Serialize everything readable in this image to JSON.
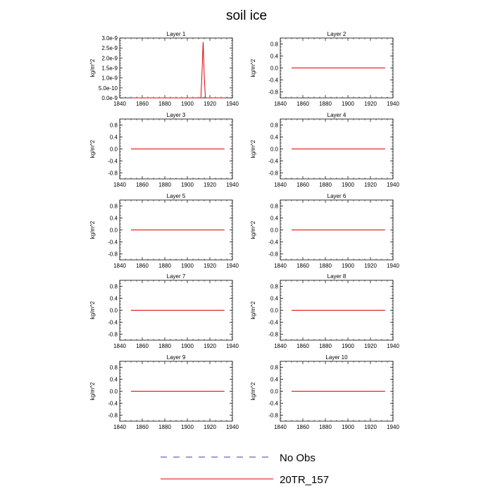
{
  "title": "soil ice",
  "legend": [
    {
      "label": "No Obs",
      "color": "#3b3bb8",
      "style": "dashed"
    },
    {
      "label": "20TR_157",
      "color": "#e00000",
      "style": "solid"
    }
  ],
  "chart_data": [
    {
      "type": "line",
      "title": "Layer 1",
      "ylabel": "kg/m^2",
      "xlim": [
        1840,
        1940
      ],
      "ylim": [
        0,
        3e-09
      ],
      "xticks": [
        1840,
        1860,
        1880,
        1900,
        1920,
        1940
      ],
      "yticks": [
        {
          "value": 0.0,
          "label": "0.0e-9"
        },
        {
          "value": 5e-10,
          "label": "5.0e-10"
        },
        {
          "value": 1e-09,
          "label": "1.0e-9"
        },
        {
          "value": 1.5e-09,
          "label": "1.5e-9"
        },
        {
          "value": 2e-09,
          "label": "2.0e-9"
        },
        {
          "value": 2.5e-09,
          "label": "2.5e-9"
        },
        {
          "value": 3e-09,
          "label": "3.0e-9"
        }
      ],
      "series": [
        {
          "name": "20TR_157",
          "color": "#e00000",
          "x": [
            1850,
            1911,
            1912,
            1913,
            1914,
            1915,
            1916,
            1933
          ],
          "y": [
            0,
            0,
            0,
            1.2e-09,
            2.8e-09,
            1.1e-09,
            0,
            0
          ]
        }
      ]
    },
    {
      "type": "line",
      "title": "Layer 2",
      "ylabel": "kg/m^2",
      "xlim": [
        1840,
        1940
      ],
      "ylim": [
        -1.0,
        1.0
      ],
      "xticks": [
        1840,
        1860,
        1880,
        1900,
        1920,
        1940
      ],
      "yticks": [
        {
          "value": 0.8,
          "label": "0.8"
        },
        {
          "value": 0.4,
          "label": "0.4"
        },
        {
          "value": 0.0,
          "label": "0.0"
        },
        {
          "value": -0.4,
          "label": "-0.4"
        },
        {
          "value": -0.8,
          "label": "-0.8"
        }
      ],
      "series": [
        {
          "name": "20TR_157",
          "color": "#e00000",
          "x": [
            1850,
            1933
          ],
          "y": [
            0,
            0
          ]
        }
      ]
    },
    {
      "type": "line",
      "title": "Layer 3",
      "ylabel": "kg/m^2",
      "xlim": [
        1840,
        1940
      ],
      "ylim": [
        -1.0,
        1.0
      ],
      "xticks": [
        1840,
        1860,
        1880,
        1900,
        1920,
        1940
      ],
      "yticks": [
        {
          "value": 0.8,
          "label": "0.8"
        },
        {
          "value": 0.4,
          "label": "0.4"
        },
        {
          "value": 0.0,
          "label": "0.0"
        },
        {
          "value": -0.4,
          "label": "-0.4"
        },
        {
          "value": -0.8,
          "label": "-0.8"
        }
      ],
      "series": [
        {
          "name": "20TR_157",
          "color": "#e00000",
          "x": [
            1850,
            1933
          ],
          "y": [
            0,
            0
          ]
        }
      ]
    },
    {
      "type": "line",
      "title": "Layer 4",
      "ylabel": "kg/m^2",
      "xlim": [
        1840,
        1940
      ],
      "ylim": [
        -1.0,
        1.0
      ],
      "xticks": [
        1840,
        1860,
        1880,
        1900,
        1920,
        1940
      ],
      "yticks": [
        {
          "value": 0.8,
          "label": "0.8"
        },
        {
          "value": 0.4,
          "label": "0.4"
        },
        {
          "value": 0.0,
          "label": "0.0"
        },
        {
          "value": -0.4,
          "label": "-0.4"
        },
        {
          "value": -0.8,
          "label": "-0.8"
        }
      ],
      "series": [
        {
          "name": "20TR_157",
          "color": "#e00000",
          "x": [
            1850,
            1933
          ],
          "y": [
            0,
            0
          ]
        }
      ]
    },
    {
      "type": "line",
      "title": "Layer 5",
      "ylabel": "kg/m^2",
      "xlim": [
        1840,
        1940
      ],
      "ylim": [
        -1.0,
        1.0
      ],
      "xticks": [
        1840,
        1860,
        1880,
        1900,
        1920,
        1940
      ],
      "yticks": [
        {
          "value": 0.8,
          "label": "0.8"
        },
        {
          "value": 0.4,
          "label": "0.4"
        },
        {
          "value": 0.0,
          "label": "0.0"
        },
        {
          "value": -0.4,
          "label": "-0.4"
        },
        {
          "value": -0.8,
          "label": "-0.8"
        }
      ],
      "series": [
        {
          "name": "20TR_157",
          "color": "#e00000",
          "x": [
            1850,
            1933
          ],
          "y": [
            0,
            0
          ]
        }
      ]
    },
    {
      "type": "line",
      "title": "Layer 6",
      "ylabel": "kg/m^2",
      "xlim": [
        1840,
        1940
      ],
      "ylim": [
        -1.0,
        1.0
      ],
      "xticks": [
        1840,
        1860,
        1880,
        1900,
        1920,
        1940
      ],
      "yticks": [
        {
          "value": 0.8,
          "label": "0.8"
        },
        {
          "value": 0.4,
          "label": "0.4"
        },
        {
          "value": 0.0,
          "label": "0.0"
        },
        {
          "value": -0.4,
          "label": "-0.4"
        },
        {
          "value": -0.8,
          "label": "-0.8"
        }
      ],
      "series": [
        {
          "name": "20TR_157",
          "color": "#e00000",
          "x": [
            1850,
            1933
          ],
          "y": [
            0,
            0
          ]
        }
      ]
    },
    {
      "type": "line",
      "title": "Layer 7",
      "ylabel": "kg/m^2",
      "xlim": [
        1840,
        1940
      ],
      "ylim": [
        -1.0,
        1.0
      ],
      "xticks": [
        1840,
        1860,
        1880,
        1900,
        1920,
        1940
      ],
      "yticks": [
        {
          "value": 0.8,
          "label": "0.8"
        },
        {
          "value": 0.4,
          "label": "0.4"
        },
        {
          "value": 0.0,
          "label": "0.0"
        },
        {
          "value": -0.4,
          "label": "-0.4"
        },
        {
          "value": -0.8,
          "label": "-0.8"
        }
      ],
      "series": [
        {
          "name": "20TR_157",
          "color": "#e00000",
          "x": [
            1850,
            1933
          ],
          "y": [
            0,
            0
          ]
        }
      ]
    },
    {
      "type": "line",
      "title": "Layer 8",
      "ylabel": "kg/m^2",
      "xlim": [
        1840,
        1940
      ],
      "ylim": [
        -1.0,
        1.0
      ],
      "xticks": [
        1840,
        1860,
        1880,
        1900,
        1920,
        1940
      ],
      "yticks": [
        {
          "value": 0.8,
          "label": "0.8"
        },
        {
          "value": 0.4,
          "label": "0.4"
        },
        {
          "value": 0.0,
          "label": "0.0"
        },
        {
          "value": -0.4,
          "label": "-0.4"
        },
        {
          "value": -0.8,
          "label": "-0.8"
        }
      ],
      "series": [
        {
          "name": "20TR_157",
          "color": "#e00000",
          "x": [
            1850,
            1933
          ],
          "y": [
            0,
            0
          ]
        }
      ]
    },
    {
      "type": "line",
      "title": "Layer 9",
      "ylabel": "kg/m^2",
      "xlim": [
        1840,
        1940
      ],
      "ylim": [
        -1.0,
        1.0
      ],
      "xticks": [
        1840,
        1860,
        1880,
        1900,
        1920,
        1940
      ],
      "yticks": [
        {
          "value": 0.8,
          "label": "0.8"
        },
        {
          "value": 0.4,
          "label": "0.4"
        },
        {
          "value": 0.0,
          "label": "0.0"
        },
        {
          "value": -0.4,
          "label": "-0.4"
        },
        {
          "value": -0.8,
          "label": "-0.8"
        }
      ],
      "series": [
        {
          "name": "20TR_157",
          "color": "#e00000",
          "x": [
            1850,
            1933
          ],
          "y": [
            0,
            0
          ]
        }
      ]
    },
    {
      "type": "line",
      "title": "Layer 10",
      "ylabel": "kg/m^2",
      "xlim": [
        1840,
        1940
      ],
      "ylim": [
        -1.0,
        1.0
      ],
      "xticks": [
        1840,
        1860,
        1880,
        1900,
        1920,
        1940
      ],
      "yticks": [
        {
          "value": 0.8,
          "label": "0.8"
        },
        {
          "value": 0.4,
          "label": "0.4"
        },
        {
          "value": 0.0,
          "label": "0.0"
        },
        {
          "value": -0.4,
          "label": "-0.4"
        },
        {
          "value": -0.8,
          "label": "-0.8"
        }
      ],
      "series": [
        {
          "name": "20TR_157",
          "color": "#e00000",
          "x": [
            1850,
            1933
          ],
          "y": [
            0,
            0
          ]
        }
      ]
    }
  ]
}
